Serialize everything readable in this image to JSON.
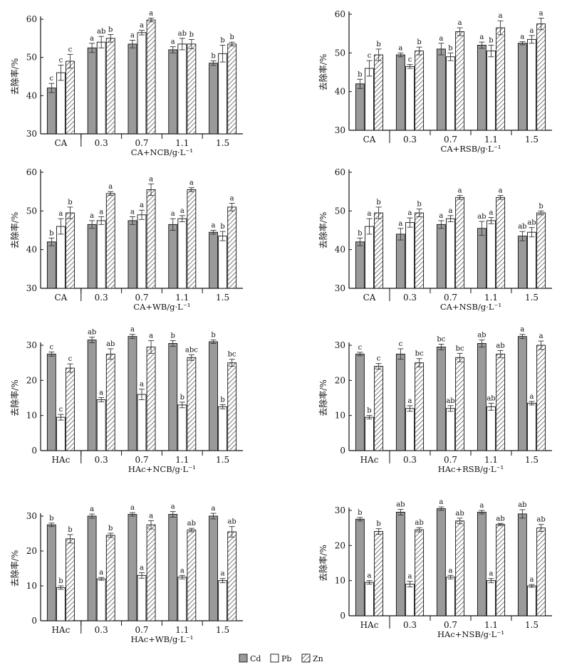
{
  "colors": {
    "axis": "#111111",
    "cd_fill": "#9a9a9a",
    "pb_fill": "#ffffff",
    "zn_hatch": "#444444",
    "error_bar": "#333333"
  },
  "legend": {
    "items": [
      {
        "name": "Cd",
        "pattern": "gray"
      },
      {
        "name": "Pb",
        "pattern": "white"
      },
      {
        "name": "Zn",
        "pattern": "hatch"
      }
    ],
    "placement": "bottom-center"
  },
  "chart_data": [
    {
      "type": "bar",
      "ylabel": "去除率/%",
      "xlabel": "CA+NCB/g·L⁻¹",
      "categories": [
        "CA",
        "0.3",
        "0.7",
        "1.1",
        "1.5"
      ],
      "ylim": [
        30,
        60
      ],
      "yticks": [
        30,
        40,
        50,
        60
      ],
      "series": [
        {
          "name": "Cd",
          "values": [
            42.0,
            52.5,
            53.5,
            52.0,
            48.5
          ],
          "errors": [
            1.2,
            1.2,
            1.0,
            0.8,
            0.6
          ],
          "letters": [
            "c",
            "a",
            "a",
            "a",
            "b"
          ]
        },
        {
          "name": "Pb",
          "values": [
            46.0,
            54.0,
            56.5,
            53.5,
            51.0
          ],
          "errors": [
            2.0,
            1.5,
            0.6,
            1.5,
            2.2
          ],
          "letters": [
            "c",
            "ab",
            "a",
            "ab",
            "b"
          ]
        },
        {
          "name": "Zn",
          "values": [
            49.0,
            55.0,
            59.8,
            53.5,
            53.5
          ],
          "errors": [
            1.8,
            1.0,
            0.5,
            1.2,
            0.5
          ],
          "letters": [
            "c",
            "b",
            "a",
            "b",
            "b"
          ]
        }
      ]
    },
    {
      "type": "bar",
      "ylabel": "去除率/%",
      "xlabel": "CA+RSB/g·L⁻¹",
      "categories": [
        "CA",
        "0.3",
        "0.7",
        "1.1",
        "1.5"
      ],
      "ylim": [
        30,
        60
      ],
      "yticks": [
        30,
        40,
        50,
        60
      ],
      "series": [
        {
          "name": "Cd",
          "values": [
            42.0,
            49.5,
            51.0,
            52.0,
            52.5
          ],
          "errors": [
            1.2,
            0.5,
            1.5,
            0.8,
            0.4
          ],
          "letters": [
            "b",
            "a",
            "a",
            "a",
            "a"
          ]
        },
        {
          "name": "Pb",
          "values": [
            46.0,
            46.5,
            49.0,
            50.5,
            53.5
          ],
          "errors": [
            2.0,
            0.5,
            1.0,
            1.5,
            1.0
          ],
          "letters": [
            "c",
            "c",
            "b",
            "b",
            "a"
          ]
        },
        {
          "name": "Zn",
          "values": [
            49.5,
            50.5,
            55.5,
            56.5,
            57.5
          ],
          "errors": [
            1.5,
            1.0,
            1.0,
            1.8,
            1.5
          ],
          "letters": [
            "b",
            "b",
            "a",
            "a",
            "a"
          ]
        }
      ]
    },
    {
      "type": "bar",
      "ylabel": "去除率/%",
      "xlabel": "CA+WB/g·L⁻¹",
      "categories": [
        "CA",
        "0.3",
        "0.7",
        "1.1",
        "1.5"
      ],
      "ylim": [
        30,
        60
      ],
      "yticks": [
        30,
        40,
        50,
        60
      ],
      "series": [
        {
          "name": "Cd",
          "values": [
            42.0,
            46.5,
            47.5,
            46.5,
            44.5
          ],
          "errors": [
            1.0,
            1.0,
            1.0,
            1.5,
            0.5
          ],
          "letters": [
            "b",
            "a",
            "a",
            "a",
            "a"
          ]
        },
        {
          "name": "Pb",
          "values": [
            46.0,
            47.5,
            49.0,
            48.0,
            43.5
          ],
          "errors": [
            2.0,
            1.0,
            1.2,
            0.8,
            1.2
          ],
          "letters": [
            "a",
            "a",
            "a",
            "a",
            "b"
          ]
        },
        {
          "name": "Zn",
          "values": [
            49.5,
            54.5,
            55.5,
            55.5,
            51.0
          ],
          "errors": [
            1.5,
            0.5,
            1.5,
            0.5,
            1.0
          ],
          "letters": [
            "b",
            "a",
            "a",
            "a",
            "a"
          ]
        }
      ]
    },
    {
      "type": "bar",
      "ylabel": "去除率/%",
      "xlabel": "CA+NSB/g·L⁻¹",
      "categories": [
        "CA",
        "0.3",
        "0.7",
        "1.1",
        "1.5"
      ],
      "ylim": [
        30,
        60
      ],
      "yticks": [
        30,
        40,
        50,
        60
      ],
      "series": [
        {
          "name": "Cd",
          "values": [
            42.0,
            44.0,
            46.5,
            45.5,
            43.5
          ],
          "errors": [
            1.0,
            1.5,
            1.0,
            1.8,
            1.2
          ],
          "letters": [
            "b",
            "a",
            "a",
            "ab",
            "ab"
          ]
        },
        {
          "name": "Pb",
          "values": [
            46.0,
            47.0,
            48.0,
            47.5,
            44.5
          ],
          "errors": [
            2.0,
            1.2,
            0.8,
            0.8,
            1.2
          ],
          "letters": [
            "a",
            "a",
            "a",
            "a",
            "ab"
          ]
        },
        {
          "name": "Zn",
          "values": [
            49.5,
            49.5,
            53.5,
            53.5,
            49.5
          ],
          "errors": [
            1.5,
            1.0,
            0.5,
            0.5,
            0.5
          ],
          "letters": [
            "b",
            "b",
            "a",
            "a",
            "b"
          ]
        }
      ]
    },
    {
      "type": "bar",
      "ylabel": "去除率/%",
      "xlabel": "HAc+NCB/g·L⁻¹",
      "categories": [
        "HAc",
        "0.3",
        "0.7",
        "1.1",
        "1.5"
      ],
      "ylim": [
        0,
        30
      ],
      "yticks": [
        0,
        10,
        20,
        30
      ],
      "series": [
        {
          "name": "Cd",
          "values": [
            27.5,
            31.5,
            32.5,
            30.5,
            31.0
          ],
          "errors": [
            0.6,
            0.8,
            0.6,
            0.8,
            0.5
          ],
          "letters": [
            "c",
            "ab",
            "a",
            "b",
            "b"
          ]
        },
        {
          "name": "Pb",
          "values": [
            9.5,
            14.5,
            16.0,
            13.0,
            12.5
          ],
          "errors": [
            0.8,
            0.6,
            1.5,
            0.8,
            0.6
          ],
          "letters": [
            "c",
            "a",
            "a",
            "b",
            "b"
          ]
        },
        {
          "name": "Zn",
          "values": [
            23.5,
            27.5,
            29.5,
            26.5,
            25.0
          ],
          "errors": [
            1.2,
            1.5,
            1.8,
            0.8,
            1.0
          ],
          "letters": [
            "c",
            "ab",
            "a",
            "abc",
            "bc"
          ]
        }
      ]
    },
    {
      "type": "bar",
      "ylabel": "去除率/%",
      "xlabel": "HAc+RSB/g·L⁻¹",
      "categories": [
        "HAc",
        "0.3",
        "0.7",
        "1.1",
        "1.5"
      ],
      "ylim": [
        0,
        30
      ],
      "yticks": [
        0,
        10,
        20,
        30
      ],
      "series": [
        {
          "name": "Cd",
          "values": [
            27.5,
            27.5,
            29.5,
            30.5,
            32.5
          ],
          "errors": [
            0.5,
            1.5,
            0.8,
            1.0,
            0.6
          ],
          "letters": [
            "c",
            "c",
            "bc",
            "ab",
            "a"
          ]
        },
        {
          "name": "Pb",
          "values": [
            9.5,
            12.0,
            12.0,
            12.5,
            13.5
          ],
          "errors": [
            0.5,
            0.8,
            0.8,
            1.0,
            0.5
          ],
          "letters": [
            "b",
            "a",
            "ab",
            "ab",
            "a"
          ]
        },
        {
          "name": "Zn",
          "values": [
            24.0,
            25.0,
            26.5,
            27.5,
            30.0
          ],
          "errors": [
            0.8,
            1.2,
            1.2,
            1.0,
            1.2
          ],
          "letters": [
            "c",
            "bc",
            "bc",
            "ab",
            "a"
          ]
        }
      ]
    },
    {
      "type": "bar",
      "ylabel": "去除率/%",
      "xlabel": "HAc+WB/g·L⁻¹",
      "categories": [
        "HAc",
        "0.3",
        "0.7",
        "1.1",
        "1.5"
      ],
      "ylim": [
        0,
        30
      ],
      "yticks": [
        0,
        10,
        20,
        30
      ],
      "series": [
        {
          "name": "Cd",
          "values": [
            27.5,
            30.0,
            30.5,
            30.5,
            30.0
          ],
          "errors": [
            0.5,
            0.6,
            0.5,
            0.8,
            0.8
          ],
          "letters": [
            "b",
            "a",
            "a",
            "a",
            "a"
          ]
        },
        {
          "name": "Pb",
          "values": [
            9.5,
            12.0,
            13.0,
            12.5,
            11.5
          ],
          "errors": [
            0.5,
            0.4,
            0.8,
            0.5,
            0.6
          ],
          "letters": [
            "b",
            "a",
            "a",
            "a",
            "a"
          ]
        },
        {
          "name": "Zn",
          "values": [
            23.5,
            24.5,
            27.5,
            26.0,
            25.5
          ],
          "errors": [
            1.2,
            0.6,
            1.2,
            0.5,
            1.5
          ],
          "letters": [
            "b",
            "b",
            "a",
            "ab",
            "ab"
          ]
        }
      ]
    },
    {
      "type": "bar",
      "ylabel": "去除率/%",
      "xlabel": "HAc+NSB/g·L⁻¹",
      "categories": [
        "HAc",
        "0.3",
        "0.7",
        "1.1",
        "1.5"
      ],
      "ylim": [
        0,
        30
      ],
      "yticks": [
        0,
        10,
        20,
        30
      ],
      "series": [
        {
          "name": "Cd",
          "values": [
            27.5,
            29.5,
            30.5,
            29.5,
            29.0
          ],
          "errors": [
            0.5,
            0.8,
            0.5,
            0.5,
            1.2
          ],
          "letters": [
            "b",
            "ab",
            "a",
            "a",
            "ab"
          ]
        },
        {
          "name": "Pb",
          "values": [
            9.5,
            9.0,
            11.0,
            10.0,
            8.5
          ],
          "errors": [
            0.5,
            0.8,
            0.5,
            0.6,
            0.4
          ],
          "letters": [
            "a",
            "a",
            "a",
            "a",
            "a"
          ]
        },
        {
          "name": "Zn",
          "values": [
            24.0,
            24.5,
            27.0,
            26.0,
            25.0
          ],
          "errors": [
            0.8,
            0.6,
            0.8,
            0.3,
            1.0
          ],
          "letters": [
            "b",
            "ab",
            "ab",
            "ab",
            "ab"
          ]
        }
      ]
    }
  ]
}
